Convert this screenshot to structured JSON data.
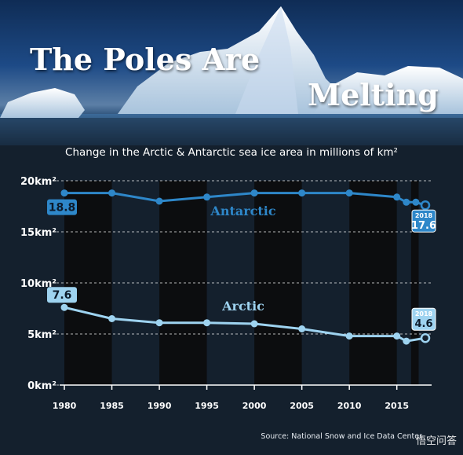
{
  "page": {
    "title_word_1": "The Poles Are",
    "title_word_2": "Melting",
    "subtitle": "Change in the Arctic & Antarctic sea ice area in millions of km²",
    "source": "Source: National Snow and Ice Data Center",
    "watermark": "悟空问答"
  },
  "colors": {
    "antarctic": "#2e87c9",
    "arctic": "#9ed3f0",
    "label_antarctic_bg": "#2e87c9",
    "label_arctic_bg": "#9ed3f0",
    "axis_text": "#ffffff",
    "stripe": "#0a0a0a"
  },
  "chart_data": {
    "type": "line",
    "title": "Change in the Arctic & Antarctic sea ice area in millions of km²",
    "xlabel": "",
    "ylabel": "",
    "x_ticks": [
      1980,
      1985,
      1990,
      1995,
      2000,
      2005,
      2010,
      2015
    ],
    "xlim": [
      1980,
      2018
    ],
    "ylim": [
      0,
      20
    ],
    "y_ticks": [
      {
        "value": 0,
        "label": "0km²"
      },
      {
        "value": 5,
        "label": "5km²"
      },
      {
        "value": 10,
        "label": "10km²"
      },
      {
        "value": 15,
        "label": "15km²"
      },
      {
        "value": 20,
        "label": "20km²"
      }
    ],
    "grid": "dashed horizontal",
    "series": [
      {
        "name": "Antarctic",
        "color_key": "antarctic",
        "points": [
          {
            "x": 1980,
            "y": 18.8
          },
          {
            "x": 1985,
            "y": 18.8
          },
          {
            "x": 1990,
            "y": 18.0
          },
          {
            "x": 1995,
            "y": 18.4
          },
          {
            "x": 2000,
            "y": 18.8
          },
          {
            "x": 2005,
            "y": 18.8
          },
          {
            "x": 2010,
            "y": 18.8
          },
          {
            "x": 2015,
            "y": 18.4
          },
          {
            "x": 2016,
            "y": 17.9
          },
          {
            "x": 2017,
            "y": 17.9
          },
          {
            "x": 2018,
            "y": 17.6
          }
        ],
        "start_label": "18.8",
        "end_label": "17.6",
        "end_year_label": "2018"
      },
      {
        "name": "Arctic",
        "color_key": "arctic",
        "points": [
          {
            "x": 1980,
            "y": 7.6
          },
          {
            "x": 1985,
            "y": 6.5
          },
          {
            "x": 1990,
            "y": 6.1
          },
          {
            "x": 1995,
            "y": 6.1
          },
          {
            "x": 2000,
            "y": 6.0
          },
          {
            "x": 2005,
            "y": 5.5
          },
          {
            "x": 2010,
            "y": 4.8
          },
          {
            "x": 2015,
            "y": 4.8
          },
          {
            "x": 2016,
            "y": 4.3
          },
          {
            "x": 2018,
            "y": 4.6
          }
        ],
        "start_label": "7.6",
        "end_label": "4.6",
        "end_year_label": "2018"
      }
    ]
  }
}
